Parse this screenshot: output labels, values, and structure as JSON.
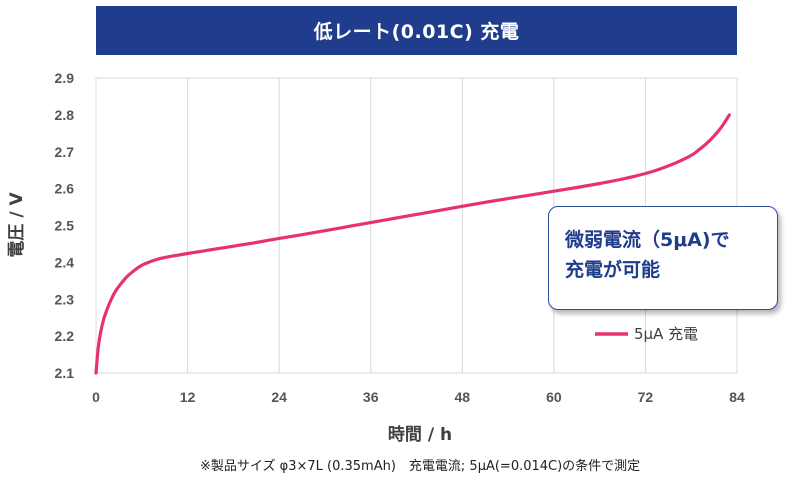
{
  "header": {
    "title": "低レート(0.01C) 充電"
  },
  "callout": {
    "line1": "微弱電流（5μA)で",
    "line2": "充電が可能"
  },
  "footnote": "※製品サイズ φ3×7L (0.35mAh)　充電電流; 5μA(=0.014C)の条件で測定",
  "colors": {
    "series": "#e7336b",
    "title_bg": "#1f3d8c",
    "grid": "#d9d9d9",
    "callout_border": "#2e4d9a"
  },
  "chart_data": {
    "type": "line",
    "title": "低レート(0.01C) 充電",
    "xlabel": "時間 / h",
    "ylabel": "電圧 / V",
    "xlim": [
      0,
      84
    ],
    "ylim": [
      2.1,
      2.9
    ],
    "xticks": [
      "0",
      "12",
      "24",
      "36",
      "48",
      "60",
      "72",
      "84"
    ],
    "yticks": [
      "2.1",
      "2.2",
      "2.3",
      "2.4",
      "2.5",
      "2.6",
      "2.7",
      "2.8",
      "2.9"
    ],
    "grid": "vertical",
    "legend": "bottom-right",
    "series": [
      {
        "name": "5μA 充電",
        "x": [
          0,
          0.3,
          0.6,
          1,
          1.5,
          2,
          2.5,
          3,
          3.5,
          4,
          5,
          6,
          7,
          8,
          9,
          10,
          12,
          15,
          18,
          21,
          24,
          27,
          30,
          33,
          36,
          39,
          42,
          45,
          48,
          51,
          54,
          57,
          60,
          63,
          66,
          69,
          72,
          74,
          76,
          78,
          79,
          80,
          81,
          82,
          83
        ],
        "y": [
          2.1,
          2.17,
          2.21,
          2.245,
          2.275,
          2.3,
          2.32,
          2.335,
          2.348,
          2.36,
          2.378,
          2.392,
          2.401,
          2.408,
          2.413,
          2.417,
          2.424,
          2.434,
          2.444,
          2.454,
          2.465,
          2.475,
          2.486,
          2.497,
          2.508,
          2.519,
          2.53,
          2.541,
          2.552,
          2.563,
          2.573,
          2.583,
          2.593,
          2.603,
          2.614,
          2.626,
          2.641,
          2.654,
          2.67,
          2.69,
          2.705,
          2.722,
          2.743,
          2.768,
          2.8
        ]
      }
    ]
  }
}
